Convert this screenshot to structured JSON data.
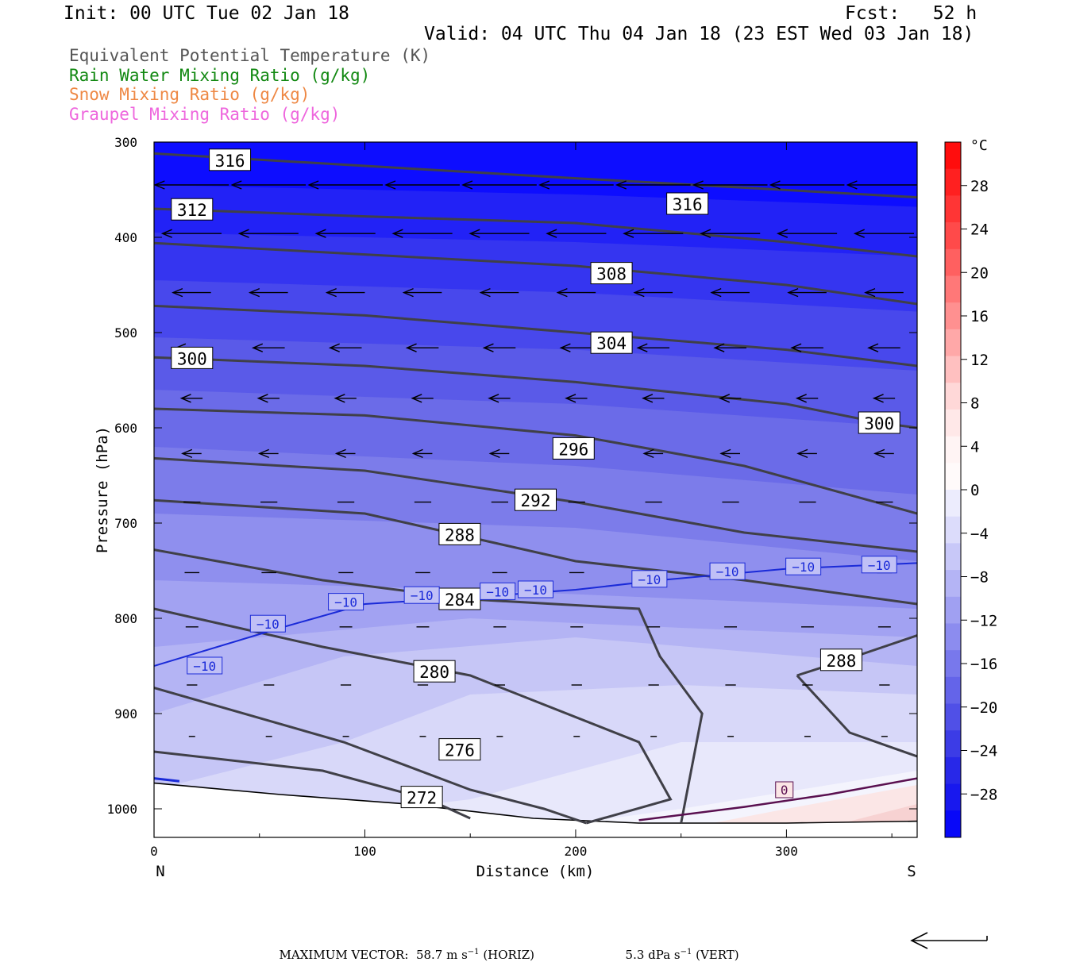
{
  "header": {
    "init": "Init: 00 UTC Tue 02 Jan 18",
    "fcst": "Fcst:   52 h",
    "valid": "Valid: 04 UTC Thu 04 Jan 18 (23 EST Wed 03 Jan 18)"
  },
  "legend": [
    {
      "label": "Equivalent Potential Temperature (K)",
      "color": "#555555"
    },
    {
      "label": "Rain Water Mixing Ratio (g/kg)",
      "color": "#118811"
    },
    {
      "label": "Snow Mixing Ratio (g/kg)",
      "color": "#ee8844"
    },
    {
      "label": "Graupel Mixing Ratio (g/kg)",
      "color": "#ee66dd"
    }
  ],
  "chart_data": {
    "type": "cross-section",
    "xlabel": "Distance (km)",
    "ylabel": "Pressure (hPa)",
    "x_ticks": [
      0,
      100,
      200,
      300
    ],
    "x_range": [
      0,
      362
    ],
    "y_ticks": [
      300,
      400,
      500,
      600,
      700,
      800,
      900,
      1000
    ],
    "y_range": [
      1030,
      300
    ],
    "end_labels": {
      "left": "N",
      "right": "S"
    },
    "colorbar": {
      "unit": "°C",
      "ticks": [
        28,
        24,
        20,
        16,
        12,
        8,
        4,
        0,
        -4,
        -8,
        -12,
        -16,
        -20,
        -24,
        -28
      ]
    },
    "theta_e_contours": [
      {
        "value": 272,
        "label_pos": [
          127,
          988
        ]
      },
      {
        "value": 276,
        "label_pos": [
          145,
          938
        ]
      },
      {
        "value": 280,
        "label_pos": [
          133,
          856
        ]
      },
      {
        "value": 284,
        "label_pos": [
          145,
          780
        ]
      },
      {
        "value": 288,
        "label_pos": [
          145,
          712
        ]
      },
      {
        "value": 288,
        "label_pos": [
          326,
          844
        ]
      },
      {
        "value": 292,
        "label_pos": [
          181,
          676
        ]
      },
      {
        "value": 296,
        "label_pos": [
          199,
          622
        ]
      },
      {
        "value": 300,
        "label_pos": [
          18,
          527
        ]
      },
      {
        "value": 300,
        "label_pos": [
          344,
          595
        ]
      },
      {
        "value": 304,
        "label_pos": [
          217,
          511
        ]
      },
      {
        "value": 308,
        "label_pos": [
          217,
          438
        ]
      },
      {
        "value": 312,
        "label_pos": [
          18,
          371
        ]
      },
      {
        "value": 316,
        "label_pos": [
          36,
          319
        ]
      },
      {
        "value": 316,
        "label_pos": [
          253,
          365
        ]
      }
    ],
    "isotherm_labels": {
      "minus10": "−10",
      "zero": "0"
    },
    "footer": {
      "prefix": "MAXIMUM VECTOR:",
      "horiz_value": "58.7 m s",
      "horiz_exp": "−1",
      "horiz_suffix": " (HORIZ)",
      "vert_value": "5.3 dPa s",
      "vert_exp": "−1",
      "vert_suffix": " (VERT)"
    }
  }
}
